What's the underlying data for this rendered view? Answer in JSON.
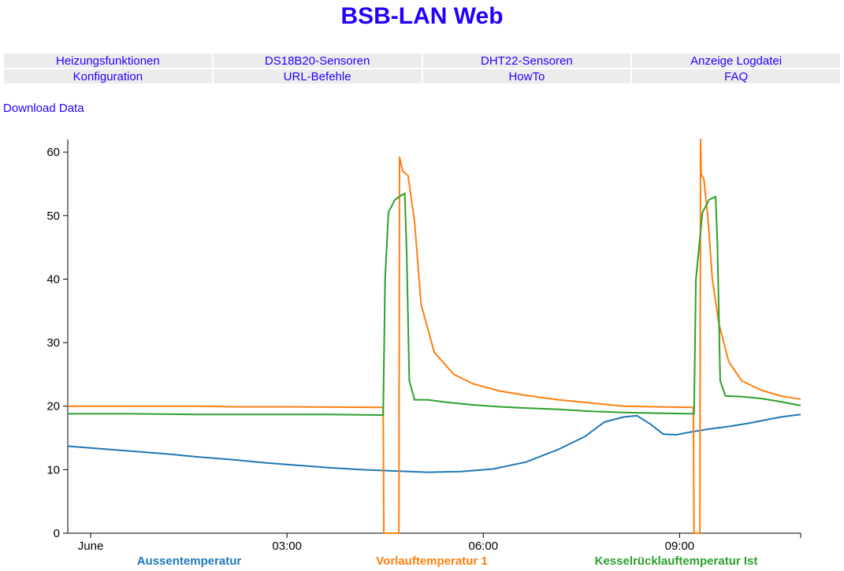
{
  "page": {
    "title": "BSB-LAN Web"
  },
  "nav": {
    "rows": [
      [
        "Heizungsfunktionen",
        "DS18B20-Sensoren",
        "DHT22-Sensoren",
        "Anzeige Logdatei"
      ],
      [
        "Konfiguration",
        "URL-Befehle",
        "HowTo",
        "FAQ"
      ]
    ]
  },
  "download_label": "Download Data",
  "chart_data": {
    "type": "line",
    "title": "",
    "xlabel": "",
    "ylabel": "",
    "xlim": [
      0.0,
      11.2
    ],
    "ylim": [
      0,
      62
    ],
    "y_ticks": [
      0,
      10,
      20,
      30,
      40,
      50,
      60
    ],
    "x_ticks": [
      {
        "value": 0.35,
        "label": "June"
      },
      {
        "value": 3.35,
        "label": "03:00"
      },
      {
        "value": 6.35,
        "label": "06:00"
      },
      {
        "value": 9.35,
        "label": "09:00"
      }
    ],
    "legend": {
      "position": "bottom"
    },
    "series": [
      {
        "name": "Aussentemperatur",
        "color": "#1f77b4",
        "x": [
          0.0,
          0.5,
          1.0,
          1.5,
          2.0,
          2.5,
          3.0,
          3.5,
          4.0,
          4.5,
          5.0,
          5.5,
          6.0,
          6.5,
          7.0,
          7.5,
          7.9,
          8.2,
          8.5,
          8.7,
          8.9,
          9.1,
          9.3,
          9.5,
          9.8,
          10.1,
          10.4,
          10.7,
          10.9,
          11.2
        ],
        "y": [
          13.7,
          13.3,
          12.9,
          12.5,
          12.0,
          11.6,
          11.1,
          10.7,
          10.3,
          10.0,
          9.8,
          9.6,
          9.7,
          10.1,
          11.2,
          13.2,
          15.2,
          17.5,
          18.3,
          18.5,
          17.2,
          15.6,
          15.5,
          15.9,
          16.4,
          16.8,
          17.3,
          17.9,
          18.3,
          18.7
        ]
      },
      {
        "name": "Vorlauftemperatur 1",
        "color": "#ff7f0e",
        "x": [
          0.0,
          2.0,
          2.6,
          3.2,
          4.8,
          4.82,
          4.83,
          4.84,
          5.05,
          5.06,
          5.07,
          5.12,
          5.2,
          5.3,
          5.4,
          5.6,
          5.9,
          6.2,
          6.6,
          7.0,
          7.5,
          8.0,
          8.5,
          9.0,
          9.55,
          9.56,
          9.57,
          9.6,
          9.66,
          9.67,
          9.68,
          9.72,
          9.78,
          9.85,
          9.95,
          10.1,
          10.3,
          10.6,
          10.9,
          11.2
        ],
        "y": [
          20.0,
          20.0,
          19.9,
          19.9,
          19.8,
          19.8,
          0,
          0,
          0,
          0,
          59.2,
          57.0,
          56.3,
          49.0,
          36.0,
          28.5,
          25.0,
          23.5,
          22.4,
          21.7,
          21.0,
          20.5,
          20.0,
          19.9,
          19.8,
          19.8,
          0,
          0,
          0,
          62.0,
          56.5,
          55.8,
          50.0,
          40.0,
          33.0,
          27.0,
          24.0,
          22.5,
          21.6,
          21.1
        ]
      },
      {
        "name": "Kesselrücklauftemperatur Ist",
        "color": "#2ca02c",
        "x": [
          0.0,
          1.0,
          2.0,
          3.0,
          4.0,
          4.8,
          4.82,
          4.85,
          4.9,
          5.0,
          5.1,
          5.15,
          5.18,
          5.22,
          5.3,
          5.5,
          5.8,
          6.2,
          6.6,
          7.0,
          7.5,
          8.0,
          8.5,
          9.0,
          9.55,
          9.57,
          9.6,
          9.7,
          9.8,
          9.9,
          9.93,
          9.97,
          10.05,
          10.3,
          10.6,
          10.9,
          11.2
        ],
        "y": [
          18.8,
          18.8,
          18.7,
          18.7,
          18.7,
          18.6,
          18.6,
          40.0,
          50.5,
          52.5,
          53.2,
          53.5,
          44.0,
          24.0,
          21.0,
          21.0,
          20.6,
          20.2,
          19.9,
          19.7,
          19.5,
          19.2,
          19.0,
          18.9,
          18.8,
          18.8,
          40.0,
          50.5,
          52.5,
          53.0,
          45.0,
          24.0,
          21.6,
          21.5,
          21.2,
          20.7,
          20.1
        ]
      }
    ]
  }
}
